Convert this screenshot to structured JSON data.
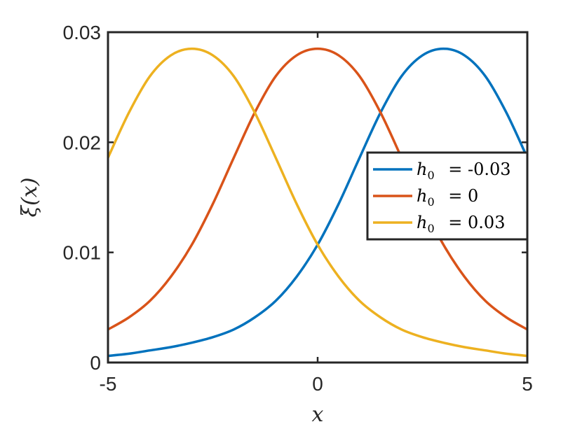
{
  "chart_data": {
    "type": "line",
    "xlabel": "x",
    "ylabel": "ξ(x)",
    "xlim": [
      -5,
      5
    ],
    "ylim": [
      0,
      0.03
    ],
    "xticks": [
      -5,
      0,
      5
    ],
    "xtick_labels": [
      "-5",
      "0",
      "5"
    ],
    "yticks": [
      0,
      0.01,
      0.02,
      0.03
    ],
    "ytick_labels": [
      "0",
      "0.01",
      "0.02",
      "0.03"
    ],
    "grid": false,
    "legend_position": "right",
    "series": [
      {
        "name": "h_0 = -0.03",
        "legend_var": "h",
        "legend_sub": "0",
        "legend_rest": " = -0.03",
        "color": "#0072BD",
        "x": [
          -5,
          -4.5,
          -4,
          -3.5,
          -3,
          -2.5,
          -2,
          -1.5,
          -1,
          -0.5,
          0,
          0.5,
          1,
          1.5,
          2,
          2.5,
          3,
          3.5,
          4,
          4.5,
          5
        ],
        "y": [
          0.0006,
          0.0008,
          0.0011,
          0.0014,
          0.0018,
          0.0023,
          0.003,
          0.0041,
          0.0056,
          0.0078,
          0.0107,
          0.0144,
          0.0186,
          0.0227,
          0.026,
          0.0279,
          0.0285,
          0.0279,
          0.026,
          0.0227,
          0.0186
        ]
      },
      {
        "name": "h_0 = 0",
        "legend_var": "h",
        "legend_sub": "0",
        "legend_rest": " = 0",
        "color": "#D95319",
        "x": [
          -5,
          -4.5,
          -4,
          -3.5,
          -3,
          -2.5,
          -2,
          -1.5,
          -1,
          -0.5,
          0,
          0.5,
          1,
          1.5,
          2,
          2.5,
          3,
          3.5,
          4,
          4.5,
          5
        ],
        "y": [
          0.003,
          0.0041,
          0.0056,
          0.0078,
          0.0107,
          0.0144,
          0.0186,
          0.0227,
          0.026,
          0.0279,
          0.0285,
          0.0279,
          0.026,
          0.0227,
          0.0186,
          0.0144,
          0.0107,
          0.0078,
          0.0056,
          0.0041,
          0.003
        ]
      },
      {
        "name": "h_0 = 0.03",
        "legend_var": "h",
        "legend_sub": "0",
        "legend_rest": " = 0.03",
        "color": "#EDB120",
        "x": [
          -5,
          -4.5,
          -4,
          -3.5,
          -3,
          -2.5,
          -2,
          -1.5,
          -1,
          -0.5,
          0,
          0.5,
          1,
          1.5,
          2,
          2.5,
          3,
          3.5,
          4,
          4.5,
          5
        ],
        "y": [
          0.0186,
          0.0227,
          0.026,
          0.0279,
          0.0285,
          0.0279,
          0.026,
          0.0227,
          0.0186,
          0.0144,
          0.0107,
          0.0078,
          0.0056,
          0.0041,
          0.003,
          0.0023,
          0.0018,
          0.0014,
          0.0011,
          0.0008,
          0.0006
        ]
      }
    ]
  }
}
